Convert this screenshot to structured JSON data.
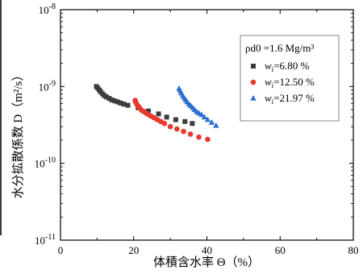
{
  "chart_data": {
    "type": "scatter",
    "xlabel": "体積含水率 Θ（%）",
    "ylabel": "水分拡散係数 D（m²/s）",
    "xlim": [
      0,
      80
    ],
    "ylim": [
      1e-11,
      1e-08
    ],
    "yscale": "log",
    "x_ticks": [
      "0",
      "20",
      "40",
      "60",
      "80"
    ],
    "y_ticks": [
      {
        "base": "10",
        "exp": "-11"
      },
      {
        "base": "10",
        "exp": "-10"
      },
      {
        "base": "10",
        "exp": "-9"
      },
      {
        "base": "10",
        "exp": "-8"
      }
    ],
    "grid": false,
    "legend_position": "top-right",
    "legend_header": {
      "text": "ρd0 =1.6 Mg/m³"
    },
    "series": [
      {
        "label_var": "w",
        "label_sub": "i",
        "label_value": "=6.80 %",
        "marker": "square",
        "color": "#3b3b3b",
        "x": [
          9.8,
          10.2,
          10.6,
          11.0,
          11.5,
          12.0,
          12.6,
          13.3,
          14.0,
          14.8,
          15.6,
          16.4,
          17.3,
          18.4,
          21.2,
          24.0,
          26.8,
          29.0,
          31.5,
          34.0,
          36.0
        ],
        "y": [
          1e-09,
          9.5e-10,
          9e-10,
          8.5e-10,
          8e-10,
          7.6e-10,
          7.3e-10,
          7e-10,
          6.7e-10,
          6.5e-10,
          6.3e-10,
          6.1e-10,
          5.9e-10,
          5.7e-10,
          5.3e-10,
          4.8e-10,
          4.4e-10,
          4e-10,
          3.7e-10,
          3.5e-10,
          3.3e-10
        ]
      },
      {
        "label_var": "w",
        "label_sub": "i",
        "label_value": "=12.50 %",
        "marker": "circle",
        "color": "#e8382f",
        "x": [
          20.4,
          20.6,
          20.9,
          21.3,
          21.7,
          22.2,
          22.8,
          23.4,
          24.1,
          24.8,
          25.6,
          26.5,
          27.4,
          28.4,
          30.0,
          31.8,
          33.6,
          35.5,
          37.8,
          40.2
        ],
        "y": [
          6.6e-10,
          6.2e-10,
          5.8e-10,
          5.5e-10,
          5.2e-10,
          4.9e-10,
          4.7e-10,
          4.5e-10,
          4.3e-10,
          4.1e-10,
          3.9e-10,
          3.7e-10,
          3.5e-10,
          3.3e-10,
          3e-10,
          2.8e-10,
          2.6e-10,
          2.4e-10,
          2.2e-10,
          2.05e-10
        ]
      },
      {
        "label_var": "w",
        "label_sub": "i",
        "label_value": "=21.97 %",
        "marker": "triangle",
        "color": "#2a6fd0",
        "x": [
          32.4,
          32.7,
          33.0,
          33.4,
          33.8,
          34.2,
          34.6,
          35.1,
          35.6,
          36.1,
          36.6,
          37.2,
          37.8,
          38.5,
          39.3,
          40.2,
          41.3,
          42.5
        ],
        "y": [
          9.4e-10,
          8.8e-10,
          8.2e-10,
          7.6e-10,
          7.1e-10,
          6.7e-10,
          6.3e-10,
          5.9e-10,
          5.6e-10,
          5.3e-10,
          5e-10,
          4.7e-10,
          4.5e-10,
          4.3e-10,
          4e-10,
          3.7e-10,
          3.4e-10,
          3.1e-10
        ]
      }
    ]
  }
}
